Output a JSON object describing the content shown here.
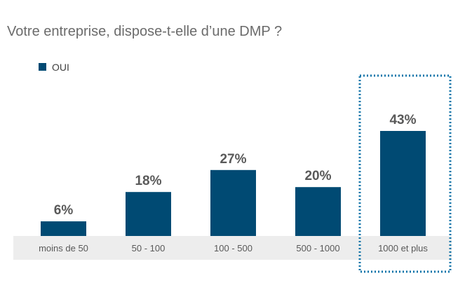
{
  "chart_data": {
    "type": "bar",
    "title": "Votre entreprise, dispose-t-elle d’une DMP ?",
    "categories": [
      "moins de 50",
      "50 - 100",
      "100 - 500",
      "500 - 1000",
      "1000 et plus"
    ],
    "series": [
      {
        "name": "OUI",
        "values": [
          6,
          18,
          27,
          20,
          43
        ],
        "labels": [
          "6%",
          "18%",
          "27%",
          "20%",
          "43%"
        ]
      }
    ],
    "ylim": [
      0,
      50
    ],
    "grid": false,
    "legend": "top-left",
    "highlighted_category": "1000 et plus"
  },
  "colors": {
    "bar": "#004a73",
    "category_band": "#ededed",
    "highlight_border": "#0f73a8"
  }
}
